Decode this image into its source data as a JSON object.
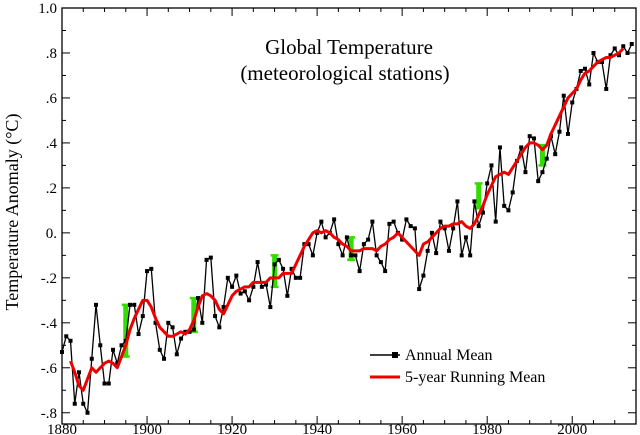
{
  "chart_data": {
    "type": "line",
    "title": "Global Temperature",
    "subtitle": "(meteorological stations)",
    "ylabel": "Temperature Anomaly (°C)",
    "xlabel": "",
    "xlim": [
      1880,
      2015
    ],
    "ylim": [
      -0.85,
      1.0
    ],
    "x_ticks": [
      1880,
      1900,
      1920,
      1940,
      1960,
      1980,
      2000
    ],
    "x_tick_labels": [
      "1880",
      "1900",
      "1920",
      "1940",
      "1960",
      "1980",
      "2000"
    ],
    "y_ticks": [
      -0.8,
      -0.6,
      -0.4,
      -0.2,
      0.0,
      0.2,
      0.4,
      0.6,
      0.8,
      1.0
    ],
    "y_tick_labels": [
      "-.8",
      "-.6",
      "-.4",
      "-.2",
      "0.",
      ".2",
      ".4",
      ".6",
      ".8",
      "1.0"
    ],
    "grid": false,
    "legend_position": "bottom-right",
    "colors": {
      "annual": "#000000",
      "running": "#ee0000",
      "error_bar": "#33dd00"
    },
    "series": [
      {
        "name": "Annual Mean",
        "x": [
          1880,
          1881,
          1882,
          1883,
          1884,
          1885,
          1886,
          1887,
          1888,
          1889,
          1890,
          1891,
          1892,
          1893,
          1894,
          1895,
          1896,
          1897,
          1898,
          1899,
          1900,
          1901,
          1902,
          1903,
          1904,
          1905,
          1906,
          1907,
          1908,
          1909,
          1910,
          1911,
          1912,
          1913,
          1914,
          1915,
          1916,
          1917,
          1918,
          1919,
          1920,
          1921,
          1922,
          1923,
          1924,
          1925,
          1926,
          1927,
          1928,
          1929,
          1930,
          1931,
          1932,
          1933,
          1934,
          1935,
          1936,
          1937,
          1938,
          1939,
          1940,
          1941,
          1942,
          1943,
          1944,
          1945,
          1946,
          1947,
          1948,
          1949,
          1950,
          1951,
          1952,
          1953,
          1954,
          1955,
          1956,
          1957,
          1958,
          1959,
          1960,
          1961,
          1962,
          1963,
          1964,
          1965,
          1966,
          1967,
          1968,
          1969,
          1970,
          1971,
          1972,
          1973,
          1974,
          1975,
          1976,
          1977,
          1978,
          1979,
          1980,
          1981,
          1982,
          1983,
          1984,
          1985,
          1986,
          1987,
          1988,
          1989,
          1990,
          1991,
          1992,
          1993,
          1994,
          1995,
          1996,
          1997,
          1998,
          1999,
          2000,
          2001,
          2002,
          2003,
          2004,
          2005,
          2006,
          2007,
          2008,
          2009,
          2010,
          2011,
          2012,
          2013,
          2014
        ],
        "values": [
          -0.53,
          -0.46,
          -0.48,
          -0.76,
          -0.62,
          -0.76,
          -0.8,
          -0.56,
          -0.32,
          -0.5,
          -0.67,
          -0.67,
          -0.52,
          -0.58,
          -0.5,
          -0.48,
          -0.32,
          -0.32,
          -0.45,
          -0.37,
          -0.17,
          -0.16,
          -0.4,
          -0.52,
          -0.56,
          -0.4,
          -0.42,
          -0.54,
          -0.47,
          -0.44,
          -0.44,
          -0.43,
          -0.29,
          -0.4,
          -0.12,
          -0.11,
          -0.37,
          -0.42,
          -0.33,
          -0.2,
          -0.24,
          -0.19,
          -0.27,
          -0.26,
          -0.3,
          -0.24,
          -0.13,
          -0.24,
          -0.23,
          -0.33,
          -0.14,
          -0.12,
          -0.16,
          -0.28,
          -0.16,
          -0.2,
          -0.2,
          -0.05,
          -0.05,
          -0.1,
          0.0,
          0.05,
          -0.02,
          0.0,
          0.06,
          -0.05,
          -0.1,
          -0.02,
          -0.1,
          -0.1,
          -0.17,
          -0.05,
          -0.03,
          0.05,
          -0.1,
          -0.13,
          -0.17,
          0.04,
          0.05,
          0.0,
          -0.03,
          0.06,
          0.03,
          0.02,
          -0.25,
          -0.19,
          -0.08,
          0.0,
          -0.09,
          0.05,
          0.02,
          -0.08,
          0.02,
          0.14,
          -0.1,
          -0.02,
          -0.1,
          0.14,
          0.03,
          0.09,
          0.22,
          0.3,
          0.05,
          0.38,
          0.12,
          0.1,
          0.18,
          0.32,
          0.38,
          0.27,
          0.43,
          0.42,
          0.23,
          0.27,
          0.33,
          0.43,
          0.35,
          0.45,
          0.61,
          0.44,
          0.58,
          0.64,
          0.72,
          0.73,
          0.66,
          0.8,
          0.76,
          0.76,
          0.64,
          0.79,
          0.82,
          0.79,
          0.83,
          0.8,
          0.84
        ]
      },
      {
        "name": "5-year Running Mean",
        "x": [
          1882,
          1883,
          1884,
          1885,
          1886,
          1887,
          1888,
          1889,
          1890,
          1891,
          1892,
          1893,
          1894,
          1895,
          1896,
          1897,
          1898,
          1899,
          1900,
          1901,
          1902,
          1903,
          1904,
          1905,
          1906,
          1907,
          1908,
          1909,
          1910,
          1911,
          1912,
          1913,
          1914,
          1915,
          1916,
          1917,
          1918,
          1919,
          1920,
          1921,
          1922,
          1923,
          1924,
          1925,
          1926,
          1927,
          1928,
          1929,
          1930,
          1931,
          1932,
          1933,
          1934,
          1935,
          1936,
          1937,
          1938,
          1939,
          1940,
          1941,
          1942,
          1943,
          1944,
          1945,
          1946,
          1947,
          1948,
          1949,
          1950,
          1951,
          1952,
          1953,
          1954,
          1955,
          1956,
          1957,
          1958,
          1959,
          1960,
          1961,
          1962,
          1963,
          1964,
          1965,
          1966,
          1967,
          1968,
          1969,
          1970,
          1971,
          1972,
          1973,
          1974,
          1975,
          1976,
          1977,
          1978,
          1979,
          1980,
          1981,
          1982,
          1983,
          1984,
          1985,
          1986,
          1987,
          1988,
          1989,
          1990,
          1991,
          1992,
          1993,
          1994,
          1995,
          1996,
          1997,
          1998,
          1999,
          2000,
          2001,
          2002,
          2003,
          2004,
          2005,
          2006,
          2007,
          2008,
          2009,
          2010,
          2011,
          2012
        ],
        "values": [
          -0.57,
          -0.62,
          -0.68,
          -0.7,
          -0.65,
          -0.6,
          -0.62,
          -0.6,
          -0.58,
          -0.57,
          -0.58,
          -0.6,
          -0.55,
          -0.5,
          -0.43,
          -0.38,
          -0.34,
          -0.3,
          -0.3,
          -0.33,
          -0.38,
          -0.42,
          -0.44,
          -0.46,
          -0.46,
          -0.45,
          -0.44,
          -0.45,
          -0.43,
          -0.39,
          -0.33,
          -0.28,
          -0.27,
          -0.28,
          -0.3,
          -0.34,
          -0.36,
          -0.32,
          -0.28,
          -0.26,
          -0.25,
          -0.24,
          -0.24,
          -0.22,
          -0.22,
          -0.22,
          -0.22,
          -0.2,
          -0.2,
          -0.2,
          -0.18,
          -0.18,
          -0.18,
          -0.14,
          -0.1,
          -0.06,
          -0.03,
          0.0,
          0.01,
          0.0,
          0.01,
          0.0,
          -0.02,
          -0.03,
          -0.05,
          -0.06,
          -0.08,
          -0.08,
          -0.08,
          -0.07,
          -0.07,
          -0.07,
          -0.08,
          -0.06,
          -0.05,
          -0.03,
          -0.02,
          0.0,
          -0.02,
          -0.04,
          -0.06,
          -0.08,
          -0.1,
          -0.05,
          -0.04,
          -0.02,
          0.0,
          0.02,
          0.03,
          0.03,
          0.04,
          0.04,
          0.05,
          0.03,
          0.02,
          0.04,
          0.08,
          0.12,
          0.17,
          0.21,
          0.25,
          0.26,
          0.27,
          0.26,
          0.29,
          0.32,
          0.35,
          0.38,
          0.4,
          0.4,
          0.39,
          0.37,
          0.39,
          0.44,
          0.48,
          0.52,
          0.56,
          0.6,
          0.62,
          0.64,
          0.68,
          0.71,
          0.72,
          0.74,
          0.76,
          0.77,
          0.78,
          0.78,
          0.79,
          0.8,
          0.82
        ]
      }
    ],
    "error_bars": [
      {
        "x": 1895,
        "low": -0.55,
        "high": -0.32
      },
      {
        "x": 1911,
        "low": -0.44,
        "high": -0.29
      },
      {
        "x": 1930,
        "low": -0.24,
        "high": -0.1
      },
      {
        "x": 1948,
        "low": -0.12,
        "high": -0.02
      },
      {
        "x": 1978,
        "low": 0.11,
        "high": 0.22
      },
      {
        "x": 1993,
        "low": 0.3,
        "high": 0.39
      }
    ]
  }
}
